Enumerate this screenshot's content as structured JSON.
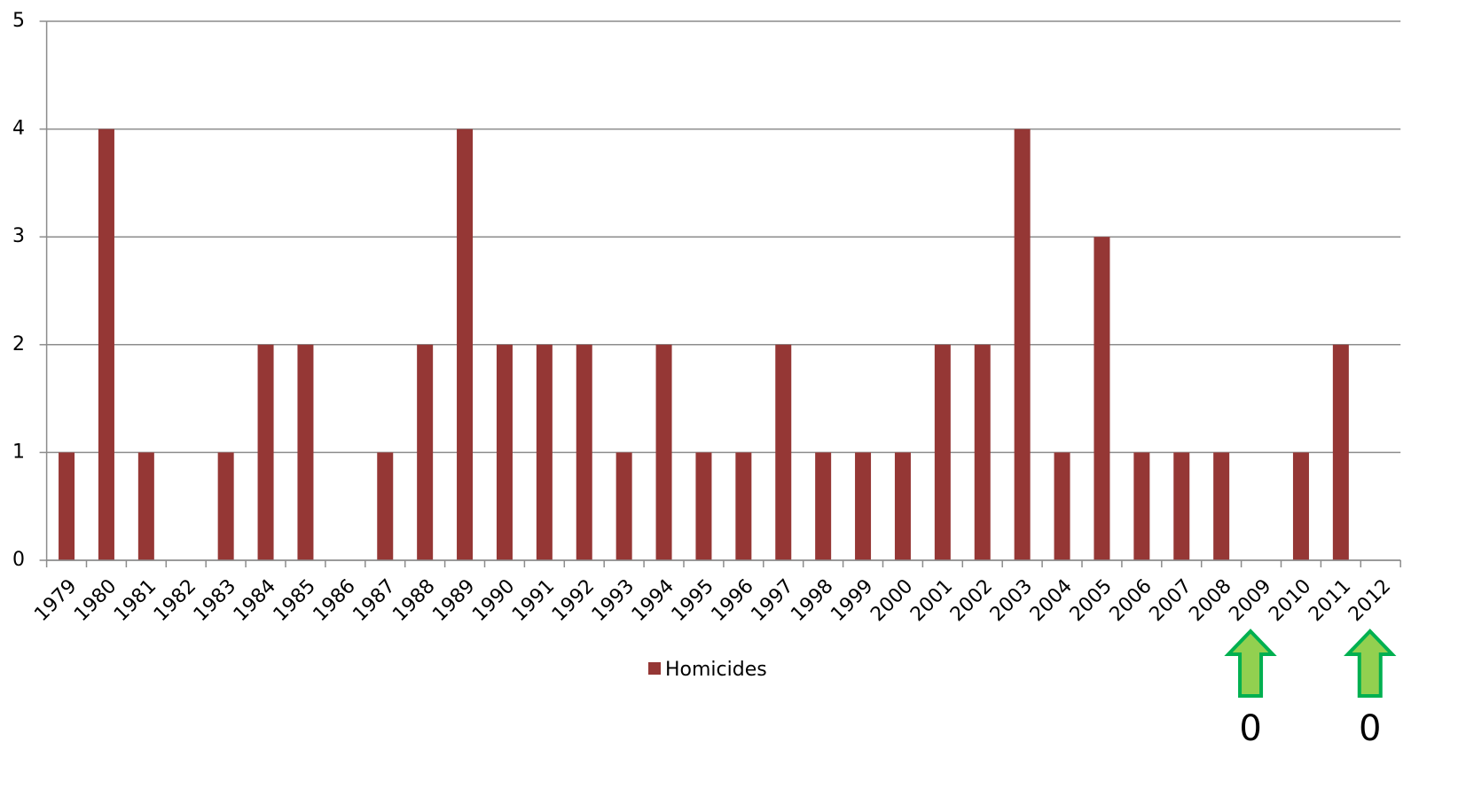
{
  "chart_data": {
    "type": "bar",
    "categories": [
      "1979",
      "1980",
      "1981",
      "1982",
      "1983",
      "1984",
      "1985",
      "1986",
      "1987",
      "1988",
      "1989",
      "1990",
      "1991",
      "1992",
      "1993",
      "1994",
      "1995",
      "1996",
      "1997",
      "1998",
      "1999",
      "2000",
      "2001",
      "2002",
      "2003",
      "2004",
      "2005",
      "2006",
      "2007",
      "2008",
      "2009",
      "2010",
      "2011",
      "2012"
    ],
    "series": [
      {
        "name": "Homicides",
        "color": "#953735",
        "values": [
          1,
          4,
          1,
          0,
          1,
          2,
          2,
          0,
          1,
          2,
          4,
          2,
          2,
          2,
          1,
          2,
          1,
          1,
          2,
          1,
          1,
          1,
          2,
          2,
          4,
          1,
          3,
          1,
          1,
          1,
          0,
          1,
          2,
          0
        ]
      }
    ],
    "ylim": [
      0,
      5
    ],
    "yticks": [
      0,
      1,
      2,
      3,
      4,
      5
    ],
    "grid": true,
    "legend": "bottom",
    "annotations": [
      {
        "value": 0,
        "category": "2009"
      },
      {
        "value": 0,
        "category": "2012"
      }
    ]
  }
}
